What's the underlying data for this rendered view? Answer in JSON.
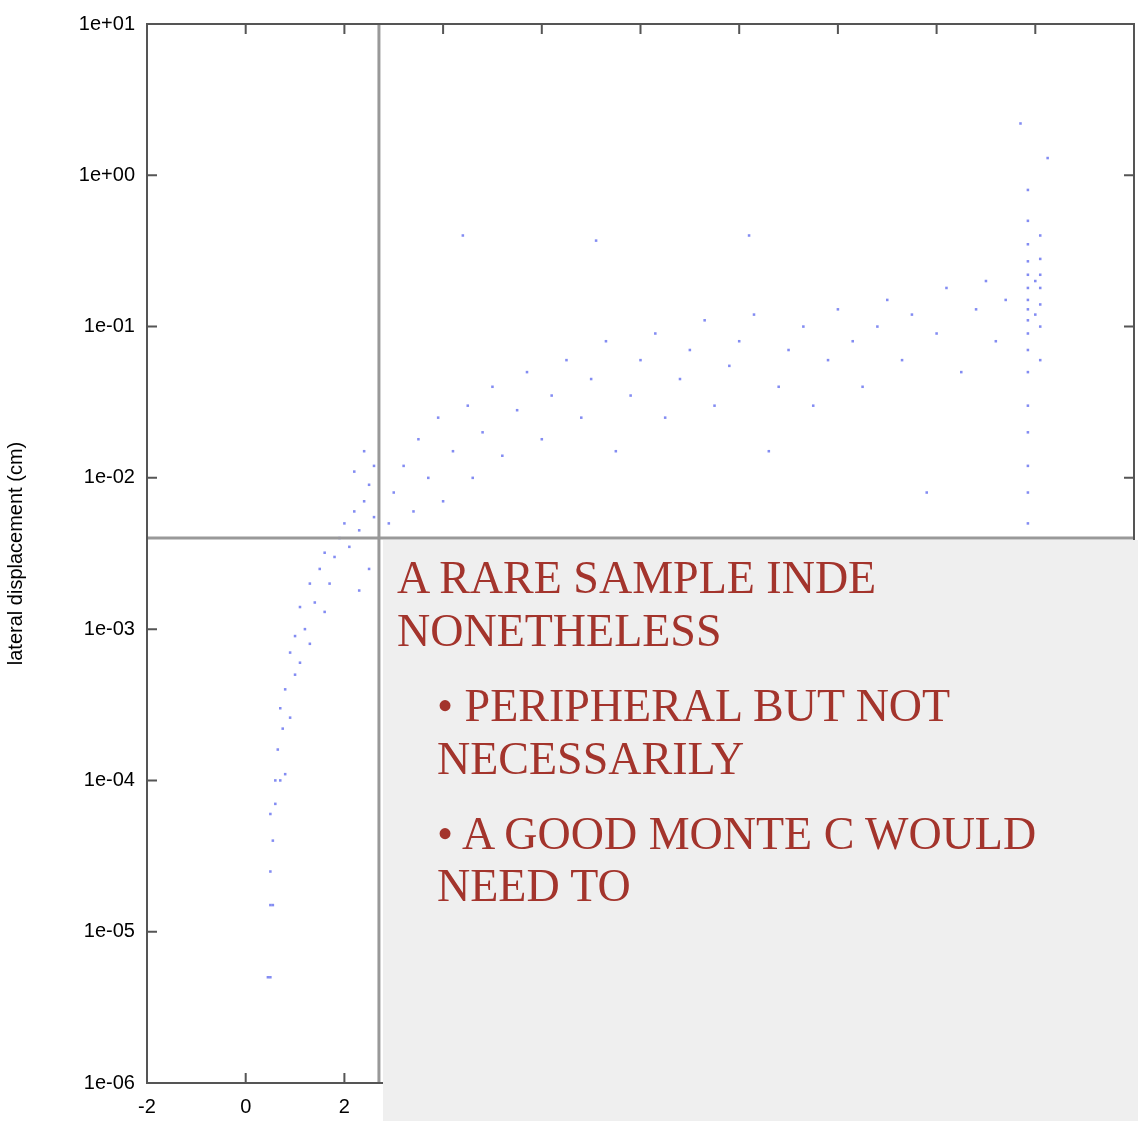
{
  "chart_data": {
    "type": "scatter",
    "ylabel": "lateral displacement (cm)",
    "log": "y",
    "grid": false,
    "legend": false,
    "marker": "square",
    "xlim": [
      -2,
      18
    ],
    "xticks": [
      -2,
      0,
      2,
      {
        "value": 4,
        "label": null
      },
      {
        "value": 6,
        "label": null
      },
      {
        "value": 8,
        "label": null
      },
      {
        "value": 10,
        "label": null
      },
      {
        "value": 12,
        "label": null
      },
      {
        "value": 14,
        "label": null
      },
      {
        "value": 16,
        "label": null
      }
    ],
    "ylim": [
      1e-06,
      10
    ],
    "yticks": [
      {
        "value": 1e-06,
        "label": "1e-06"
      },
      {
        "value": 1e-05,
        "label": "1e-05"
      },
      {
        "value": 0.0001,
        "label": "1e-04"
      },
      {
        "value": 0.001,
        "label": "1e-03"
      },
      {
        "value": 0.01,
        "label": "1e-02"
      },
      {
        "value": 0.1,
        "label": "1e-01"
      },
      {
        "value": 1,
        "label": "1e+00"
      },
      {
        "value": 10,
        "label": "1e+01"
      }
    ],
    "ref_lines": [
      {
        "axis": "y",
        "value": 0.004,
        "color": "#999999"
      },
      {
        "axis": "x",
        "value": 2.7,
        "color": "#999999"
      }
    ],
    "annotations": [
      "A RARE SAMPLE INDE NONETHELESS",
      "• PERIPHERAL BUT NOT NECESSARILY",
      "• A GOOD MONTE C WOULD NEED TO"
    ],
    "series": [
      {
        "color": "#5a66ee",
        "x": [
          0.45,
          0.5,
          0.5,
          0.55,
          0.5,
          0.55,
          0.5,
          0.6,
          0.6,
          0.7,
          0.8,
          0.65,
          0.75,
          0.7,
          0.9,
          0.8,
          1.0,
          0.9,
          1.1,
          1.0,
          1.2,
          1.3,
          1.1,
          1.4,
          1.3,
          1.6,
          1.5,
          1.7,
          1.6,
          1.8,
          1.9,
          2.0,
          2.1,
          2.2,
          2.3,
          2.4,
          2.5,
          2.6,
          2.2,
          2.4,
          2.6,
          2.5,
          2.3,
          2.9,
          3.0,
          3.2,
          3.4,
          3.5,
          3.7,
          3.9,
          4.0,
          4.2,
          4.5,
          4.6,
          4.8,
          5.0,
          5.2,
          5.5,
          5.7,
          6.0,
          6.2,
          6.5,
          6.8,
          7.0,
          7.3,
          7.5,
          7.8,
          8.0,
          8.3,
          8.5,
          8.8,
          9.0,
          9.3,
          9.5,
          9.8,
          10.0,
          10.3,
          10.6,
          10.8,
          11.0,
          11.3,
          11.5,
          11.8,
          12.0,
          12.3,
          12.5,
          12.8,
          13.0,
          13.3,
          13.5,
          13.8,
          14.0,
          14.2,
          14.5,
          14.8,
          15.0,
          15.2,
          15.4,
          4.4,
          7.1,
          15.7,
          10.2,
          15.85,
          15.85,
          15.85,
          15.85,
          15.85,
          15.85,
          15.85,
          15.85,
          15.85,
          15.85,
          15.85,
          15.85,
          15.85,
          15.85,
          15.85,
          15.85,
          15.85,
          16.1,
          16.1,
          16.1,
          16.1,
          16.1,
          16.1,
          16.1,
          16.0,
          16.0,
          16.25
        ],
        "values": [
          5e-06,
          5e-06,
          1.5e-05,
          1.5e-05,
          2.5e-05,
          4e-05,
          6e-05,
          7e-05,
          0.0001,
          0.0001,
          0.00011,
          0.00016,
          0.00022,
          0.0003,
          0.00026,
          0.0004,
          0.0005,
          0.0007,
          0.0006,
          0.0009,
          0.001,
          0.0008,
          0.0014,
          0.0015,
          0.002,
          0.0013,
          0.0025,
          0.002,
          0.0032,
          0.003,
          0.004,
          0.005,
          0.0035,
          0.006,
          0.0045,
          0.007,
          0.009,
          0.0055,
          0.011,
          0.015,
          0.012,
          0.0025,
          0.0018,
          0.005,
          0.008,
          0.012,
          0.006,
          0.018,
          0.01,
          0.025,
          0.007,
          0.015,
          0.03,
          0.01,
          0.02,
          0.04,
          0.014,
          0.028,
          0.05,
          0.018,
          0.035,
          0.06,
          0.025,
          0.045,
          0.08,
          0.015,
          0.035,
          0.06,
          0.09,
          0.025,
          0.045,
          0.07,
          0.11,
          0.03,
          0.055,
          0.08,
          0.12,
          0.015,
          0.04,
          0.07,
          0.1,
          0.03,
          0.06,
          0.13,
          0.08,
          0.04,
          0.1,
          0.15,
          0.06,
          0.12,
          0.008,
          0.09,
          0.18,
          0.05,
          0.13,
          0.2,
          0.08,
          0.15,
          0.4,
          0.37,
          2.2,
          0.4,
          0.005,
          0.008,
          0.012,
          0.02,
          0.03,
          0.05,
          0.07,
          0.09,
          0.11,
          0.13,
          0.15,
          0.18,
          0.22,
          0.27,
          0.35,
          0.5,
          0.8,
          0.06,
          0.1,
          0.14,
          0.18,
          0.22,
          0.28,
          0.4,
          0.12,
          0.2,
          1.3
        ]
      }
    ]
  }
}
